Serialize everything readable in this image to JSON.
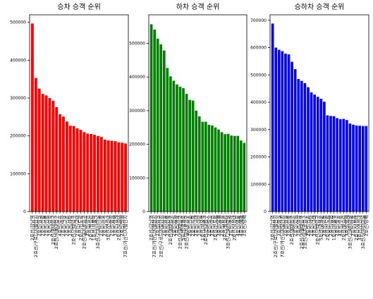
{
  "chart_data": [
    {
      "type": "bar",
      "title": "승차 승객 순위",
      "color": "#ff0000",
      "ylim": [
        0,
        520000
      ],
      "yticks": [
        0,
        100000,
        200000,
        300000,
        400000,
        500000
      ],
      "categories": [
        "2호선/강남역",
        "2호선/구로디지털단지",
        "2호선/잠실",
        "2호선/신림",
        "2호선/선릉",
        "2호선/삼성",
        "2호선/홍대입구",
        "2호선/서울대입구",
        "4호선/수유",
        "2호선/역삼",
        "2호선/신촌",
        "2호선/사당",
        "2호선/건대입구",
        "2호선/교대",
        "2호선/신도림",
        "2호선/을지로입구",
        "2호선/강변",
        "2호선/왕십리",
        "1호선/서울역",
        "3호선/고속터미널",
        "2호선/시청",
        "2호선/성수",
        "3호선/연신내",
        "2호선/합정",
        "3호선/양재",
        "2호선/낙성대",
        "2호선/방배",
        "7호선/가산디지털단지"
      ],
      "values": [
        497000,
        353000,
        325000,
        311000,
        307000,
        300000,
        293000,
        276000,
        257000,
        251000,
        238000,
        227000,
        226000,
        220000,
        216000,
        210000,
        206000,
        205000,
        203000,
        200000,
        197000,
        190000,
        188000,
        187000,
        186000,
        183000,
        182000,
        180000
      ]
    },
    {
      "type": "bar",
      "title": "하차 승객 순위",
      "color": "#008000",
      "ylim": [
        0,
        585000
      ],
      "yticks": [
        0,
        100000,
        200000,
        300000,
        400000,
        500000
      ],
      "categories": [
        "2호선/강남역",
        "7호선/가산디지털단지",
        "2호선/잠실",
        "2호선/구로디지털단지",
        "2호선/삼성",
        "2호선/선릉",
        "2호선/홍대입구",
        "2호선/신림",
        "2호선/역삼",
        "2호선/서울대입구",
        "5호선/광화문",
        "2호선/을지로입구",
        "2호선/신촌",
        "2호선/시청",
        "2호선/교대",
        "2호선/사당",
        "1호선/서울역",
        "2호선/건대입구",
        "2호선/성수",
        "2호선/강변",
        "2호선/신도림",
        "3호선/양재",
        "2호선/합정",
        "2호선/왕십리",
        "3호선/고속터미널",
        "2호선/종각",
        "2호선/낙성대",
        "4호선/명동",
        "4호선/혜화",
        "2호선/방배"
      ],
      "values": [
        557000,
        541000,
        514000,
        497000,
        479000,
        427000,
        402000,
        389000,
        378000,
        371000,
        367000,
        350000,
        332000,
        330000,
        300000,
        283000,
        267000,
        267000,
        258000,
        256000,
        250000,
        244000,
        236000,
        230000,
        231000,
        226000,
        225000,
        225000,
        211000,
        204000
      ]
    },
    {
      "type": "bar",
      "title": "승하차 승객 순위",
      "color": "#0000ff",
      "ylim": [
        0,
        720000
      ],
      "yticks": [
        0,
        100000,
        200000,
        300000,
        400000,
        500000,
        600000,
        700000
      ],
      "categories": [
        "2호선/강남역",
        "2호선/구로디지털단지",
        "2호선/잠실",
        "7호선/가산디지털단지",
        "2호선/삼성",
        "2호선/선릉",
        "2호선/홍대입구",
        "2호선/신림",
        "2호선/역삼",
        "2호선/서울대입구",
        "2호선/을지로입구",
        "2호선/신촌",
        "2호선/사당",
        "2호선/교대",
        "2호선/건대입구",
        "5호선/광화문",
        "2호선/시청",
        "2호선/신도림",
        "2호선/강변",
        "1호선/서울역",
        "2호선/성수",
        "4호선/수유",
        "2호선/왕십리",
        "3호선/양재",
        "3호선/고속터미널",
        "2호선/합정",
        "2호선/낙성대",
        "3호선/연신내",
        "3호선/남부터미널",
        "2호선/방배"
      ],
      "values": [
        688000,
        600000,
        592000,
        587000,
        578000,
        575000,
        548000,
        521000,
        485000,
        478000,
        470000,
        455000,
        436000,
        428000,
        420000,
        413000,
        402000,
        352000,
        350000,
        349000,
        342000,
        338000,
        339000,
        335000,
        322000,
        318000,
        315000,
        314000,
        313000,
        313000
      ]
    }
  ]
}
